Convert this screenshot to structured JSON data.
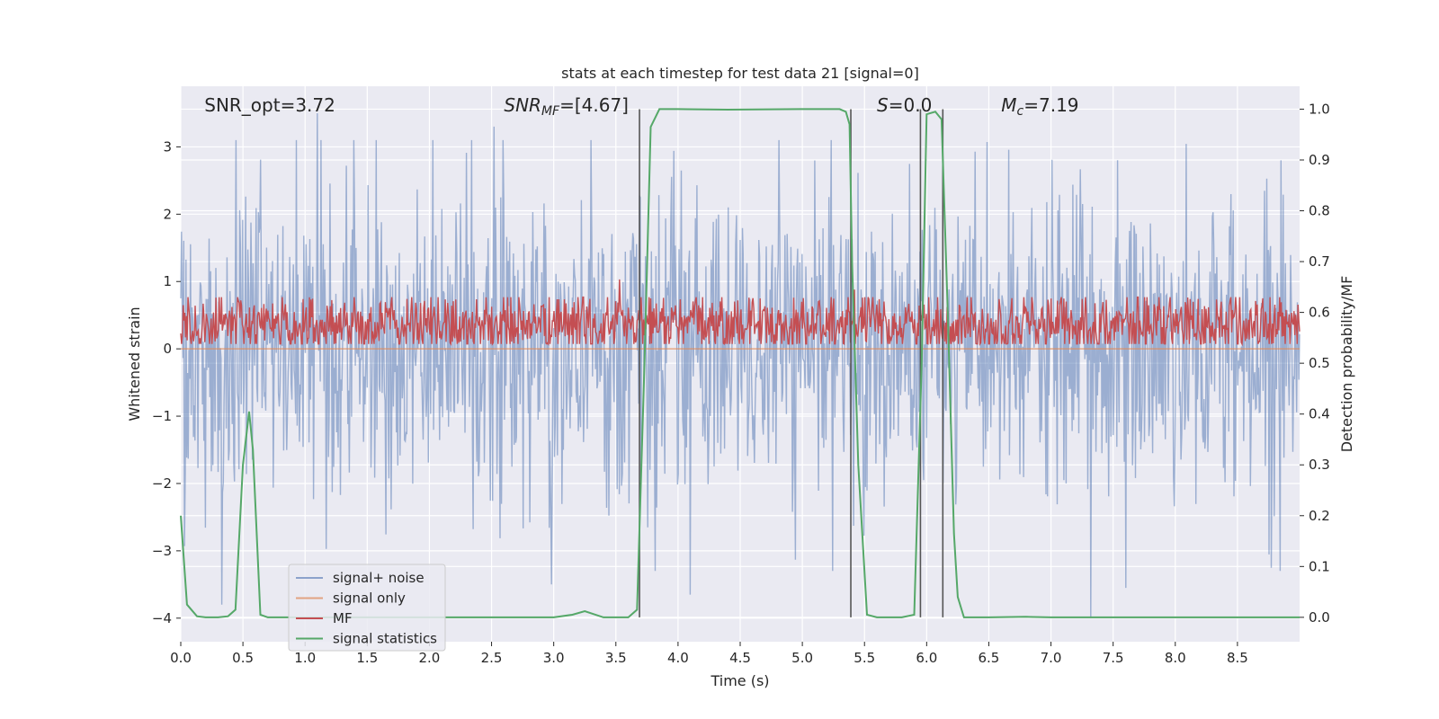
{
  "chart_data": {
    "type": "line",
    "title": "stats at each timestep for test data 21 [signal=0]",
    "xlabel": "Time (s)",
    "ylabel_left": "Whitened strain",
    "ylabel_right": "Detection probability/MF",
    "xlim": [
      0.0,
      9.0
    ],
    "ylim_left": [
      -4.35,
      3.9
    ],
    "ylim_right": [
      -0.048,
      1.045
    ],
    "x_ticks": [
      "0.0",
      "0.5",
      "1.0",
      "1.5",
      "2.0",
      "2.5",
      "3.0",
      "3.5",
      "4.0",
      "4.5",
      "5.0",
      "5.5",
      "6.0",
      "6.5",
      "7.0",
      "7.5",
      "8.0",
      "8.5"
    ],
    "x_tick_values": [
      0.0,
      0.5,
      1.0,
      1.5,
      2.0,
      2.5,
      3.0,
      3.5,
      4.0,
      4.5,
      5.0,
      5.5,
      6.0,
      6.5,
      7.0,
      7.5,
      8.0,
      8.5
    ],
    "y_left_ticks": [
      "3",
      "2",
      "1",
      "0",
      "−1",
      "−2",
      "−3",
      "−4"
    ],
    "y_left_tick_values": [
      3,
      2,
      1,
      0,
      -1,
      -2,
      -3,
      -4
    ],
    "y_right_ticks": [
      "1.0",
      "0.9",
      "0.8",
      "0.7",
      "0.6",
      "0.5",
      "0.4",
      "0.3",
      "0.2",
      "0.1",
      "0.0"
    ],
    "y_right_tick_values": [
      1.0,
      0.9,
      0.8,
      0.7,
      0.6,
      0.5,
      0.4,
      0.3,
      0.2,
      0.1,
      0.0
    ],
    "grid": true,
    "legend_position": "lower-left",
    "series": [
      {
        "name": "signal+ noise",
        "axis": "left",
        "color": "#4c72b0",
        "opacity": 0.5,
        "description_note_free": true,
        "noise_level": 1.1,
        "peak_values": [
          {
            "x": 0.33,
            "y": -3.8
          },
          {
            "x": 1.1,
            "y": 3.5
          },
          {
            "x": 2.52,
            "y": 3.3
          },
          {
            "x": 2.98,
            "y": -3.5
          },
          {
            "x": 4.1,
            "y": -3.65
          },
          {
            "x": 7.32,
            "y": -4.0
          },
          {
            "x": 7.6,
            "y": -3.55
          },
          {
            "x": 8.85,
            "y": 2.8
          }
        ]
      },
      {
        "name": "signal only",
        "axis": "left",
        "color": "#dd8452",
        "values_constant": 0.0
      },
      {
        "name": "MF",
        "axis": "right",
        "color": "#c44e52",
        "mean": 0.575,
        "amplitude": 0.035,
        "peak_values": [
          {
            "x": 3.53,
            "y": 0.665
          },
          {
            "x": 5.42,
            "y": 0.645
          }
        ]
      },
      {
        "name": "signal statistics",
        "axis": "right",
        "color": "#55a868",
        "x": [
          0.0,
          0.05,
          0.13,
          0.2,
          0.3,
          0.38,
          0.44,
          0.5,
          0.55,
          0.58,
          0.64,
          0.7,
          0.8,
          1.0,
          3.0,
          3.15,
          3.25,
          3.4,
          3.6,
          3.67,
          3.73,
          3.78,
          3.85,
          4.0,
          4.4,
          5.0,
          5.3,
          5.35,
          5.38,
          5.4,
          5.45,
          5.52,
          5.6,
          5.8,
          5.9,
          5.96,
          6.0,
          6.07,
          6.12,
          6.17,
          6.22,
          6.25,
          6.3,
          6.5,
          6.8,
          7.0,
          9.0
        ],
        "y": [
          0.2,
          0.025,
          0.002,
          0.0,
          0.0,
          0.002,
          0.015,
          0.3,
          0.405,
          0.33,
          0.005,
          0.0,
          0.0,
          0.0,
          0.0,
          0.005,
          0.012,
          0.0,
          0.0,
          0.015,
          0.5,
          0.965,
          1.0,
          1.0,
          0.999,
          1.0,
          1.0,
          0.995,
          0.97,
          0.7,
          0.3,
          0.005,
          0.0,
          0.0,
          0.005,
          0.5,
          0.99,
          0.995,
          0.98,
          0.6,
          0.165,
          0.04,
          0.0,
          0.0,
          0.001,
          0.0,
          0.0
        ]
      }
    ],
    "vertical_lines": [
      3.69,
      5.39,
      5.95,
      6.13
    ],
    "vertical_line_color": "#555555",
    "annotations": [
      {
        "x": 0.19,
        "text": "SNR_opt=3.72"
      },
      {
        "x": 2.6,
        "text_base": "SNR",
        "text_sub": "MF",
        "text_rest": "=[4.67]"
      },
      {
        "x": 5.6,
        "text_base": "S",
        "text_rest": "=0.0"
      },
      {
        "x": 6.6,
        "text_base": "M",
        "text_sub": "c",
        "text_rest": "=7.19"
      }
    ],
    "legend": [
      "signal+ noise",
      "signal only",
      "MF",
      "signal statistics"
    ]
  }
}
